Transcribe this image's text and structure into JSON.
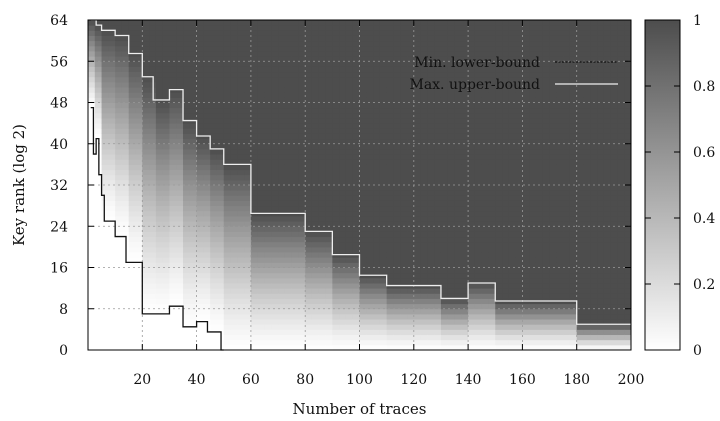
{
  "chart_data": {
    "type": "heatmap",
    "xlabel": "Number of traces",
    "ylabel": "Key rank (log 2)",
    "xlim": [
      0,
      200
    ],
    "ylim": [
      0,
      64
    ],
    "x_ticks": [
      20,
      40,
      60,
      80,
      100,
      120,
      140,
      160,
      180,
      200
    ],
    "y_ticks": [
      0,
      8,
      16,
      24,
      32,
      40,
      48,
      56,
      64
    ],
    "grid": true,
    "legend_placement": "top-right",
    "colorbar": {
      "range": [
        0,
        1
      ],
      "ticks": [
        0,
        0.2,
        0.4,
        0.6,
        0.8,
        1
      ],
      "tick_labels": [
        "0",
        "0.2",
        "0.4",
        "0.6",
        "0.8",
        "1"
      ],
      "color_low": "#ffffff",
      "color_high": "#4d4d4d"
    },
    "series": [
      {
        "name": "Min. lower-bound",
        "color": "#111111",
        "style": "dashed",
        "x": [
          1,
          2,
          3,
          4,
          5,
          6,
          10,
          14,
          20,
          24,
          30,
          35,
          40,
          44,
          49,
          50
        ],
        "y": [
          47,
          38,
          41,
          34,
          30,
          25,
          22,
          17,
          7,
          7,
          8.5,
          4.5,
          5.5,
          3.5,
          0,
          0
        ]
      },
      {
        "name": "Max. upper-bound",
        "color": "#eeeeee",
        "style": "solid",
        "x": [
          1,
          3,
          5,
          10,
          15,
          20,
          24,
          30,
          35,
          40,
          45,
          50,
          60,
          70,
          80,
          90,
          100,
          110,
          120,
          130,
          140,
          150,
          160,
          170,
          180,
          190,
          200
        ],
        "y": [
          64,
          63,
          62,
          61,
          57.5,
          53,
          48.5,
          50.5,
          44.5,
          41.5,
          39,
          36,
          26.5,
          26.5,
          23,
          18.5,
          14.5,
          12.5,
          12.5,
          10,
          13,
          9.5,
          9.5,
          9.5,
          5,
          5,
          5
        ]
      }
    ]
  }
}
